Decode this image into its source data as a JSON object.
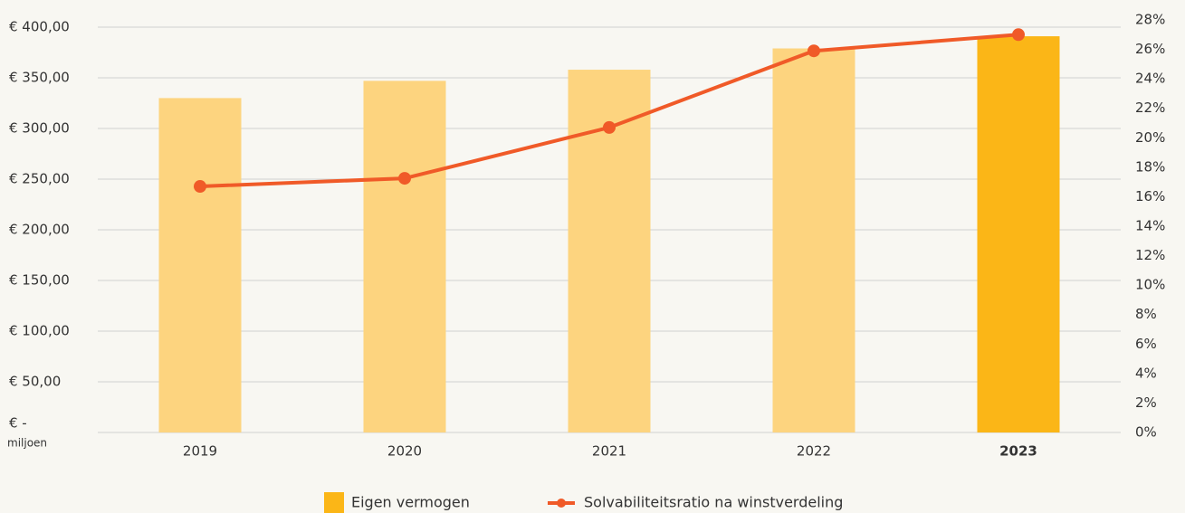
{
  "chart_data": {
    "type": "bar_line",
    "categories": [
      "2019",
      "2020",
      "2021",
      "2022",
      "2023"
    ],
    "highlight_index": 4,
    "y_unit": "miljoen",
    "series": [
      {
        "name": "Eigen vermogen",
        "type": "bar",
        "color": "#fbb617",
        "colors": [
          "#fdd47f",
          "#fdd47f",
          "#fdd47f",
          "#fdd47f",
          "#fbb617"
        ],
        "values": [
          330,
          347,
          358,
          379,
          391
        ]
      },
      {
        "name": "Solvabiliteitsratio na winstverdeling",
        "type": "line",
        "axis": "y2",
        "color": "#f05a28",
        "values": [
          16.7,
          17.25,
          20.7,
          25.9,
          27
        ]
      }
    ],
    "ylim": [
      0,
      400
    ],
    "yticks": [
      {
        "value": 0,
        "label": "€ -"
      },
      {
        "value": 50,
        "label": "€ 50,00"
      },
      {
        "value": 100,
        "label": "€ 100,00"
      },
      {
        "value": 150,
        "label": "€ 150,00"
      },
      {
        "value": 200,
        "label": "€ 200,00"
      },
      {
        "value": 250,
        "label": "€ 250,00"
      },
      {
        "value": 300,
        "label": "€ 300,00"
      },
      {
        "value": 350,
        "label": "€ 350,00"
      },
      {
        "value": 400,
        "label": "€ 400,00"
      }
    ],
    "y2lim": [
      0,
      28
    ],
    "y2ticks": [
      {
        "value": 0,
        "label": "0%"
      },
      {
        "value": 2,
        "label": "2%"
      },
      {
        "value": 4,
        "label": "4%"
      },
      {
        "value": 6,
        "label": "6%"
      },
      {
        "value": 8,
        "label": "8%"
      },
      {
        "value": 10,
        "label": "10%"
      },
      {
        "value": 12,
        "label": "12%"
      },
      {
        "value": 14,
        "label": "14%"
      },
      {
        "value": 16,
        "label": "16%"
      },
      {
        "value": 18,
        "label": "18%"
      },
      {
        "value": 20,
        "label": "20%"
      },
      {
        "value": 22,
        "label": "22%"
      },
      {
        "value": 24,
        "label": "24%"
      },
      {
        "value": 26,
        "label": "26%"
      },
      {
        "value": 28,
        "label": "28%"
      }
    ],
    "grid": true,
    "legend": "bottom"
  }
}
